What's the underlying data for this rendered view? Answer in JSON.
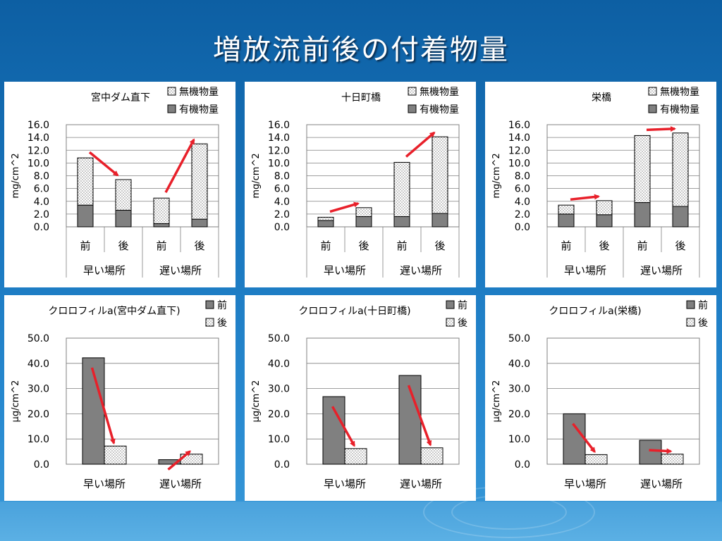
{
  "page_title": "増放流前後の付着物量",
  "chart_data": [
    {
      "type": "bar",
      "stacked": true,
      "title": "宮中ダム直下",
      "ylabel": "mg/cm^2",
      "ylim": [
        0,
        16
      ],
      "yticks": [
        "0.0",
        "2.0",
        "4.0",
        "6.0",
        "8.0",
        "10.0",
        "12.0",
        "14.0",
        "16.0"
      ],
      "categories": [
        "前",
        "後",
        "前",
        "後"
      ],
      "groups": [
        "早い場所",
        "遅い場所"
      ],
      "legend": [
        "無機物量",
        "有機物量"
      ],
      "series": [
        {
          "name": "有機物量",
          "pattern": "solid",
          "values": [
            3.4,
            2.6,
            0.5,
            1.2
          ]
        },
        {
          "name": "無機物量",
          "pattern": "dots",
          "values": [
            7.4,
            4.8,
            4.0,
            11.8
          ]
        }
      ],
      "arrows": [
        [
          0,
          1
        ],
        [
          2,
          3
        ]
      ]
    },
    {
      "type": "bar",
      "stacked": true,
      "title": "十日町橋",
      "ylabel": "mg/cm^2",
      "ylim": [
        0,
        16
      ],
      "yticks": [
        "0.0",
        "2.0",
        "4.0",
        "6.0",
        "8.0",
        "10.0",
        "12.0",
        "14.0",
        "16.0"
      ],
      "categories": [
        "前",
        "後",
        "前",
        "後"
      ],
      "groups": [
        "早い場所",
        "遅い場所"
      ],
      "legend": [
        "無機物量",
        "有機物量"
      ],
      "series": [
        {
          "name": "有機物量",
          "pattern": "solid",
          "values": [
            1.0,
            1.6,
            1.6,
            2.1
          ]
        },
        {
          "name": "無機物量",
          "pattern": "dots",
          "values": [
            0.5,
            1.4,
            8.5,
            12.0
          ]
        }
      ],
      "arrows": [
        [
          0,
          1
        ],
        [
          2,
          3
        ]
      ]
    },
    {
      "type": "bar",
      "stacked": true,
      "title": "栄橋",
      "ylabel": "mg/cm^2",
      "ylim": [
        0,
        16
      ],
      "yticks": [
        "0.0",
        "2.0",
        "4.0",
        "6.0",
        "8.0",
        "10.0",
        "12.0",
        "14.0",
        "16.0"
      ],
      "categories": [
        "前",
        "後",
        "前",
        "後"
      ],
      "groups": [
        "早い場所",
        "遅い場所"
      ],
      "legend": [
        "無機物量",
        "有機物量"
      ],
      "series": [
        {
          "name": "有機物量",
          "pattern": "solid",
          "values": [
            2.0,
            1.9,
            3.8,
            3.2
          ]
        },
        {
          "name": "無機物量",
          "pattern": "dots",
          "values": [
            1.4,
            2.2,
            10.5,
            11.5
          ]
        }
      ],
      "arrows": [
        [
          0,
          1
        ],
        [
          2,
          3
        ]
      ]
    },
    {
      "type": "bar",
      "title": "クロロフィルa(宮中ダム直下)",
      "ylabel": "μg/cm^2",
      "ylim": [
        0,
        50
      ],
      "yticks": [
        "0.0",
        "10.0",
        "20.0",
        "30.0",
        "40.0",
        "50.0"
      ],
      "categories": [
        "早い場所",
        "遅い場所"
      ],
      "legend": [
        "前",
        "後"
      ],
      "series": [
        {
          "name": "前",
          "pattern": "solid",
          "values": [
            42.2,
            1.8
          ]
        },
        {
          "name": "後",
          "pattern": "dots",
          "values": [
            7.2,
            4.0
          ]
        }
      ]
    },
    {
      "type": "bar",
      "title": "クロロフィルa(十日町橋)",
      "ylabel": "μg/cm^2",
      "ylim": [
        0,
        50
      ],
      "yticks": [
        "0.0",
        "10.0",
        "20.0",
        "30.0",
        "40.0",
        "50.0"
      ],
      "categories": [
        "早い場所",
        "遅い場所"
      ],
      "legend": [
        "前",
        "後"
      ],
      "series": [
        {
          "name": "前",
          "pattern": "solid",
          "values": [
            26.8,
            35.2
          ]
        },
        {
          "name": "後",
          "pattern": "dots",
          "values": [
            6.2,
            6.5
          ]
        }
      ]
    },
    {
      "type": "bar",
      "title": "クロロフィルa(栄橋)",
      "ylabel": "μg/cm^2",
      "ylim": [
        0,
        50
      ],
      "yticks": [
        "0.0",
        "10.0",
        "20.0",
        "30.0",
        "40.0",
        "50.0"
      ],
      "categories": [
        "早い場所",
        "遅い場所"
      ],
      "legend": [
        "前",
        "後"
      ],
      "series": [
        {
          "name": "前",
          "pattern": "solid",
          "values": [
            20.0,
            9.5
          ]
        },
        {
          "name": "後",
          "pattern": "dots",
          "values": [
            3.8,
            4.0
          ]
        }
      ]
    }
  ],
  "colors": {
    "solid": "#808080",
    "arrow": "#e8202a",
    "background": "#1a78c0"
  }
}
